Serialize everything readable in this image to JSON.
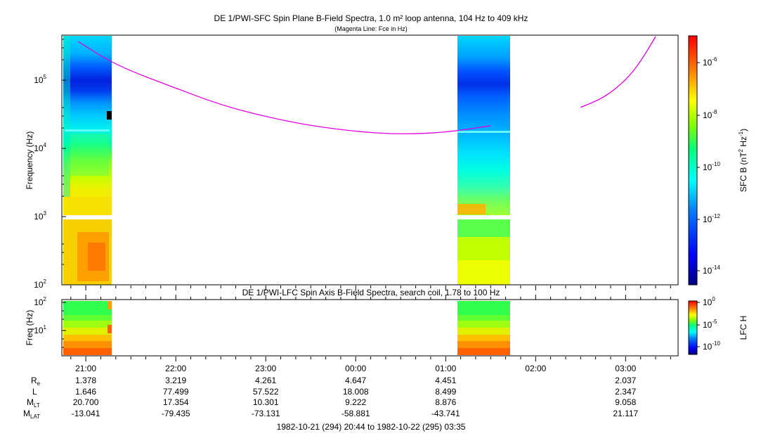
{
  "colors": {
    "fce_line": "#e000e0",
    "data_gap": "#ffffff",
    "colormap": [
      "#000080",
      "#0000ff",
      "#0080ff",
      "#00ffff",
      "#00ff80",
      "#80ff00",
      "#ffff00",
      "#ff8000",
      "#ff0000"
    ]
  },
  "chart_data": [
    {
      "type": "heatmap",
      "title": "DE 1/PWI-SFC  Spin Plane B-Field Spectra, 1.0 m² loop antenna, 104 Hz to 409 kHz",
      "subtitle": "(Magenta Line: Fce in Hz)",
      "ylabel": "Frequency (Hz)",
      "yscale": "log",
      "ylim": [
        100,
        409000
      ],
      "yticks": [
        {
          "base": "10",
          "exp": "2"
        },
        {
          "base": "10",
          "exp": "3"
        },
        {
          "base": "10",
          "exp": "4"
        },
        {
          "base": "10",
          "exp": "5"
        }
      ],
      "data_intervals": [
        "20:44-21:17",
        "01:08-01:43"
      ],
      "colorbar": {
        "label": "SFC B (nT² Hz⁻¹)",
        "label_main": "SFC B (nT",
        "label_sup1": "2",
        "label_mid": " Hz",
        "label_sup2": "-1",
        "label_end": ")",
        "scale": "log",
        "range": [
          1e-15,
          1e-05
        ],
        "ticks": [
          {
            "base": "10",
            "exp": "-6"
          },
          {
            "base": "10",
            "exp": "-8"
          },
          {
            "base": "10",
            "exp": "-10"
          },
          {
            "base": "10",
            "exp": "-12"
          },
          {
            "base": "10",
            "exp": "-14"
          }
        ]
      },
      "series": [
        {
          "name": "Fce in Hz",
          "points": [
            [
              "20:55",
              330000
            ],
            [
              "21:20",
              150000
            ],
            [
              "22:00",
              70000
            ],
            [
              "22:30",
              40000
            ],
            [
              "23:00",
              27000
            ],
            [
              "23:30",
              20000
            ],
            [
              "00:00",
              16500
            ],
            [
              "00:30",
              15000
            ],
            [
              "01:00",
              16000
            ],
            [
              "01:30",
              20000
            ]
          ]
        },
        {
          "name": "Fce in Hz",
          "points": [
            [
              "02:30",
              37000
            ],
            [
              "02:45",
              50000
            ],
            [
              "03:00",
              90000
            ],
            [
              "03:10",
              170000
            ],
            [
              "03:20",
              390000
            ]
          ]
        }
      ]
    },
    {
      "type": "heatmap",
      "title": "DE 1/PWI-LFC  Spin Axis B-Field Spectra, search coil, 1.78 to 100 Hz",
      "ylabel": "Freq (Hz)",
      "yscale": "log",
      "ylim": [
        1.78,
        100
      ],
      "yticks": [
        {
          "base": "10",
          "exp": "1"
        },
        {
          "base": "10",
          "exp": "2"
        }
      ],
      "data_intervals": [
        "20:44-21:17",
        "01:08-01:43"
      ],
      "colorbar": {
        "label": "LFC H",
        "scale": "log",
        "range": [
          1e-12,
          1
        ],
        "ticks": [
          {
            "base": "10",
            "exp": "0"
          },
          {
            "base": "10",
            "exp": "-5"
          },
          {
            "base": "10",
            "exp": "-10"
          }
        ]
      }
    }
  ],
  "xaxis": {
    "range": [
      "1982-10-21 20:44",
      "1982-10-22 03:35"
    ],
    "ticks": [
      "21:00",
      "22:00",
      "23:00",
      "00:00",
      "01:00",
      "02:00",
      "03:00"
    ]
  },
  "ephemeris": {
    "rows": [
      {
        "label": "R",
        "sub": "e",
        "values": [
          "1.378",
          "3.219",
          "4.261",
          "4.647",
          "4.451",
          "",
          "2.037"
        ]
      },
      {
        "label": "L",
        "sub": "",
        "values": [
          "1.646",
          "77.499",
          "57.522",
          "18.008",
          "8.499",
          "",
          "2.347"
        ]
      },
      {
        "label": "M",
        "sub": "LT",
        "values": [
          "20.700",
          "17.354",
          "10.301",
          "9.222",
          "8.876",
          "",
          "9.058"
        ]
      },
      {
        "label": "M",
        "sub": "LAT",
        "values": [
          "-13.041",
          "-79.435",
          "-73.131",
          "-58.881",
          "-43.741",
          "",
          "21.117"
        ]
      }
    ]
  },
  "footer": "1982-10-21 (294) 20:44 to 1982-10-22 (295) 03:35"
}
